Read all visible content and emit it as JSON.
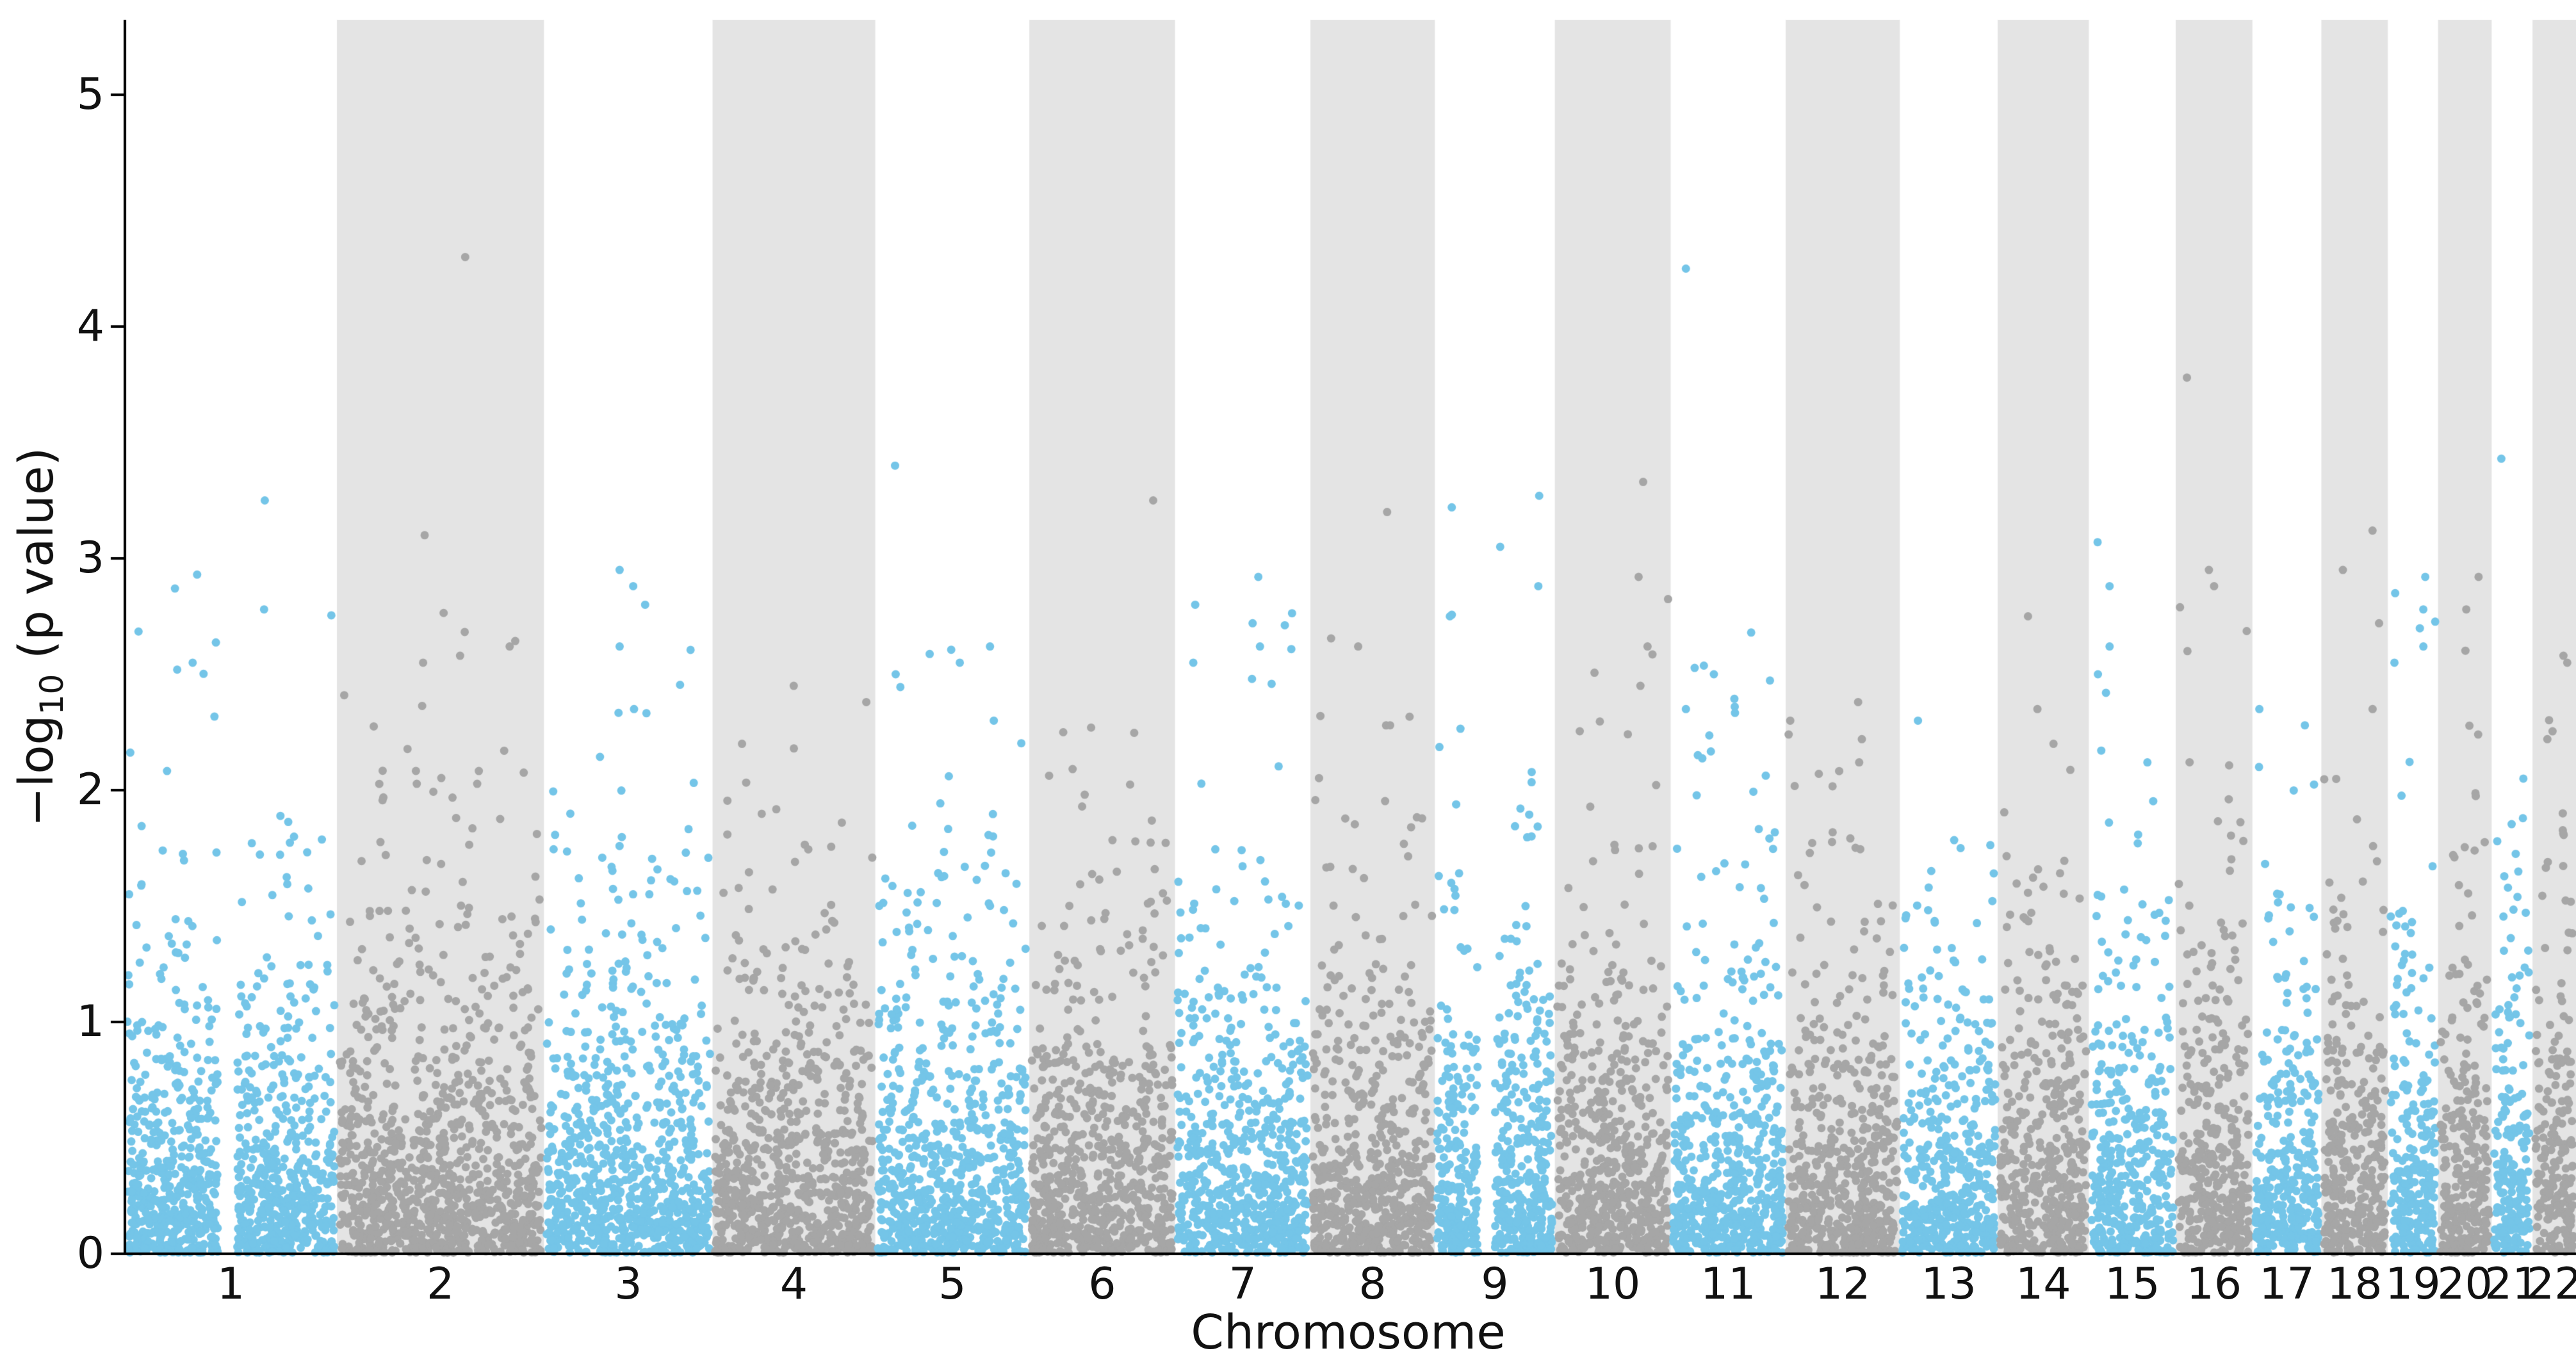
{
  "figure": {
    "background": "#ffffff"
  },
  "chart_data": {
    "type": "scatter",
    "variant": "manhattan",
    "title": "",
    "xlabel": "Chromosome",
    "ylabel": {
      "prefix": "−log",
      "sub": "10",
      "suffix": " (p value)",
      "text": "−log10 (p value)"
    },
    "ylim": [
      0,
      5.32
    ],
    "yticks": [
      0,
      1,
      2,
      3,
      4,
      5
    ],
    "grid": false,
    "legend": null,
    "colors": {
      "odd_points": "#74c5e8",
      "even_points": "#a6a6a6",
      "band": "#e4e4e4",
      "spine": "#000000",
      "background": "#ffffff"
    },
    "description": "GWAS-style Manhattan plot: -log10(p value) for SNPs across chromosomes 1-22; odd chromosomes drawn in light blue on white, even chromosomes in gray on light-gray background bands; bulk of points below 1, tail thinning to ~3, top outliers near 4.3",
    "notable_outliers": [
      {
        "chromosome": "2",
        "value": 4.3
      },
      {
        "chromosome": "11",
        "value": 4.25
      },
      {
        "chromosome": "16",
        "value": 3.78
      },
      {
        "chromosome": "21",
        "value": 3.43
      },
      {
        "chromosome": "5",
        "value": 3.4
      },
      {
        "chromosome": "10",
        "value": 3.33
      }
    ],
    "chromosomes": [
      {
        "label": "1",
        "rel_width": 249,
        "n_points": 1046,
        "color": "blue",
        "gap": [
          0.44,
          0.53
        ],
        "top_points": [
          3.25,
          2.93,
          2.87,
          2.78,
          2.55,
          2.52
        ]
      },
      {
        "label": "2",
        "rel_width": 243,
        "n_points": 1021,
        "color": "gray",
        "gap": null,
        "top_points": [
          4.3,
          3.1,
          2.62,
          2.58,
          2.55,
          2.17
        ]
      },
      {
        "label": "3",
        "rel_width": 198,
        "n_points": 832,
        "color": "blue",
        "gap": null,
        "top_points": [
          2.95,
          2.88,
          2.8,
          2.62,
          2.35
        ]
      },
      {
        "label": "4",
        "rel_width": 191,
        "n_points": 802,
        "color": "gray",
        "gap": null,
        "top_points": [
          2.45,
          2.38,
          2.2,
          2.18
        ]
      },
      {
        "label": "5",
        "rel_width": 181,
        "n_points": 760,
        "color": "blue",
        "gap": null,
        "top_points": [
          3.4,
          2.62,
          2.55,
          2.5,
          2.3
        ]
      },
      {
        "label": "6",
        "rel_width": 171,
        "n_points": 718,
        "color": "gray",
        "gap": null,
        "top_points": [
          3.25,
          2.27,
          2.25
        ]
      },
      {
        "label": "7",
        "rel_width": 159,
        "n_points": 668,
        "color": "blue",
        "gap": null,
        "top_points": [
          2.92,
          2.8,
          2.72,
          2.62,
          2.55,
          2.48
        ]
      },
      {
        "label": "8",
        "rel_width": 146,
        "n_points": 613,
        "color": "gray",
        "gap": null,
        "top_points": [
          3.2,
          2.62,
          2.32,
          2.28
        ]
      },
      {
        "label": "9",
        "rel_width": 141,
        "n_points": 592,
        "color": "blue",
        "gap": [
          0.36,
          0.5
        ],
        "top_points": [
          3.27,
          3.22,
          3.05,
          2.88,
          2.75
        ]
      },
      {
        "label": "10",
        "rel_width": 136,
        "n_points": 571,
        "color": "gray",
        "gap": null,
        "top_points": [
          3.33,
          2.92,
          2.62,
          2.45
        ]
      },
      {
        "label": "11",
        "rel_width": 135,
        "n_points": 567,
        "color": "blue",
        "gap": null,
        "top_points": [
          4.25,
          2.68,
          2.5,
          2.35
        ]
      },
      {
        "label": "12",
        "rel_width": 134,
        "n_points": 563,
        "color": "gray",
        "gap": null,
        "top_points": [
          2.38,
          2.3,
          2.22,
          2.12
        ]
      },
      {
        "label": "13",
        "rel_width": 115,
        "n_points": 483,
        "color": "blue",
        "gap": null,
        "top_points": [
          2.3,
          1.75
        ]
      },
      {
        "label": "14",
        "rel_width": 107,
        "n_points": 449,
        "color": "gray",
        "gap": null,
        "top_points": [
          2.75,
          2.35,
          2.2
        ]
      },
      {
        "label": "15",
        "rel_width": 102,
        "n_points": 428,
        "color": "blue",
        "gap": null,
        "top_points": [
          3.07,
          2.88,
          2.62,
          2.5,
          2.42
        ]
      },
      {
        "label": "16",
        "rel_width": 90,
        "n_points": 378,
        "color": "gray",
        "gap": null,
        "top_points": [
          3.78,
          2.95,
          2.88,
          2.6
        ]
      },
      {
        "label": "17",
        "rel_width": 81,
        "n_points": 340,
        "color": "blue",
        "gap": null,
        "top_points": [
          2.35,
          2.28,
          2.1
        ]
      },
      {
        "label": "18",
        "rel_width": 78,
        "n_points": 328,
        "color": "gray",
        "gap": null,
        "top_points": [
          3.12,
          2.95,
          2.72,
          2.35
        ]
      },
      {
        "label": "19",
        "rel_width": 59,
        "n_points": 248,
        "color": "blue",
        "gap": null,
        "top_points": [
          2.92,
          2.85,
          2.78,
          2.62,
          2.55
        ]
      },
      {
        "label": "20",
        "rel_width": 63,
        "n_points": 265,
        "color": "gray",
        "gap": null,
        "top_points": [
          2.92,
          2.78,
          1.72
        ]
      },
      {
        "label": "21",
        "rel_width": 48,
        "n_points": 202,
        "color": "blue",
        "gap": null,
        "top_points": [
          3.43,
          2.05,
          1.78
        ]
      },
      {
        "label": "22",
        "rel_width": 51,
        "n_points": 214,
        "color": "gray",
        "gap": null,
        "top_points": [
          2.58,
          2.55,
          2.22,
          1.9
        ]
      }
    ]
  }
}
